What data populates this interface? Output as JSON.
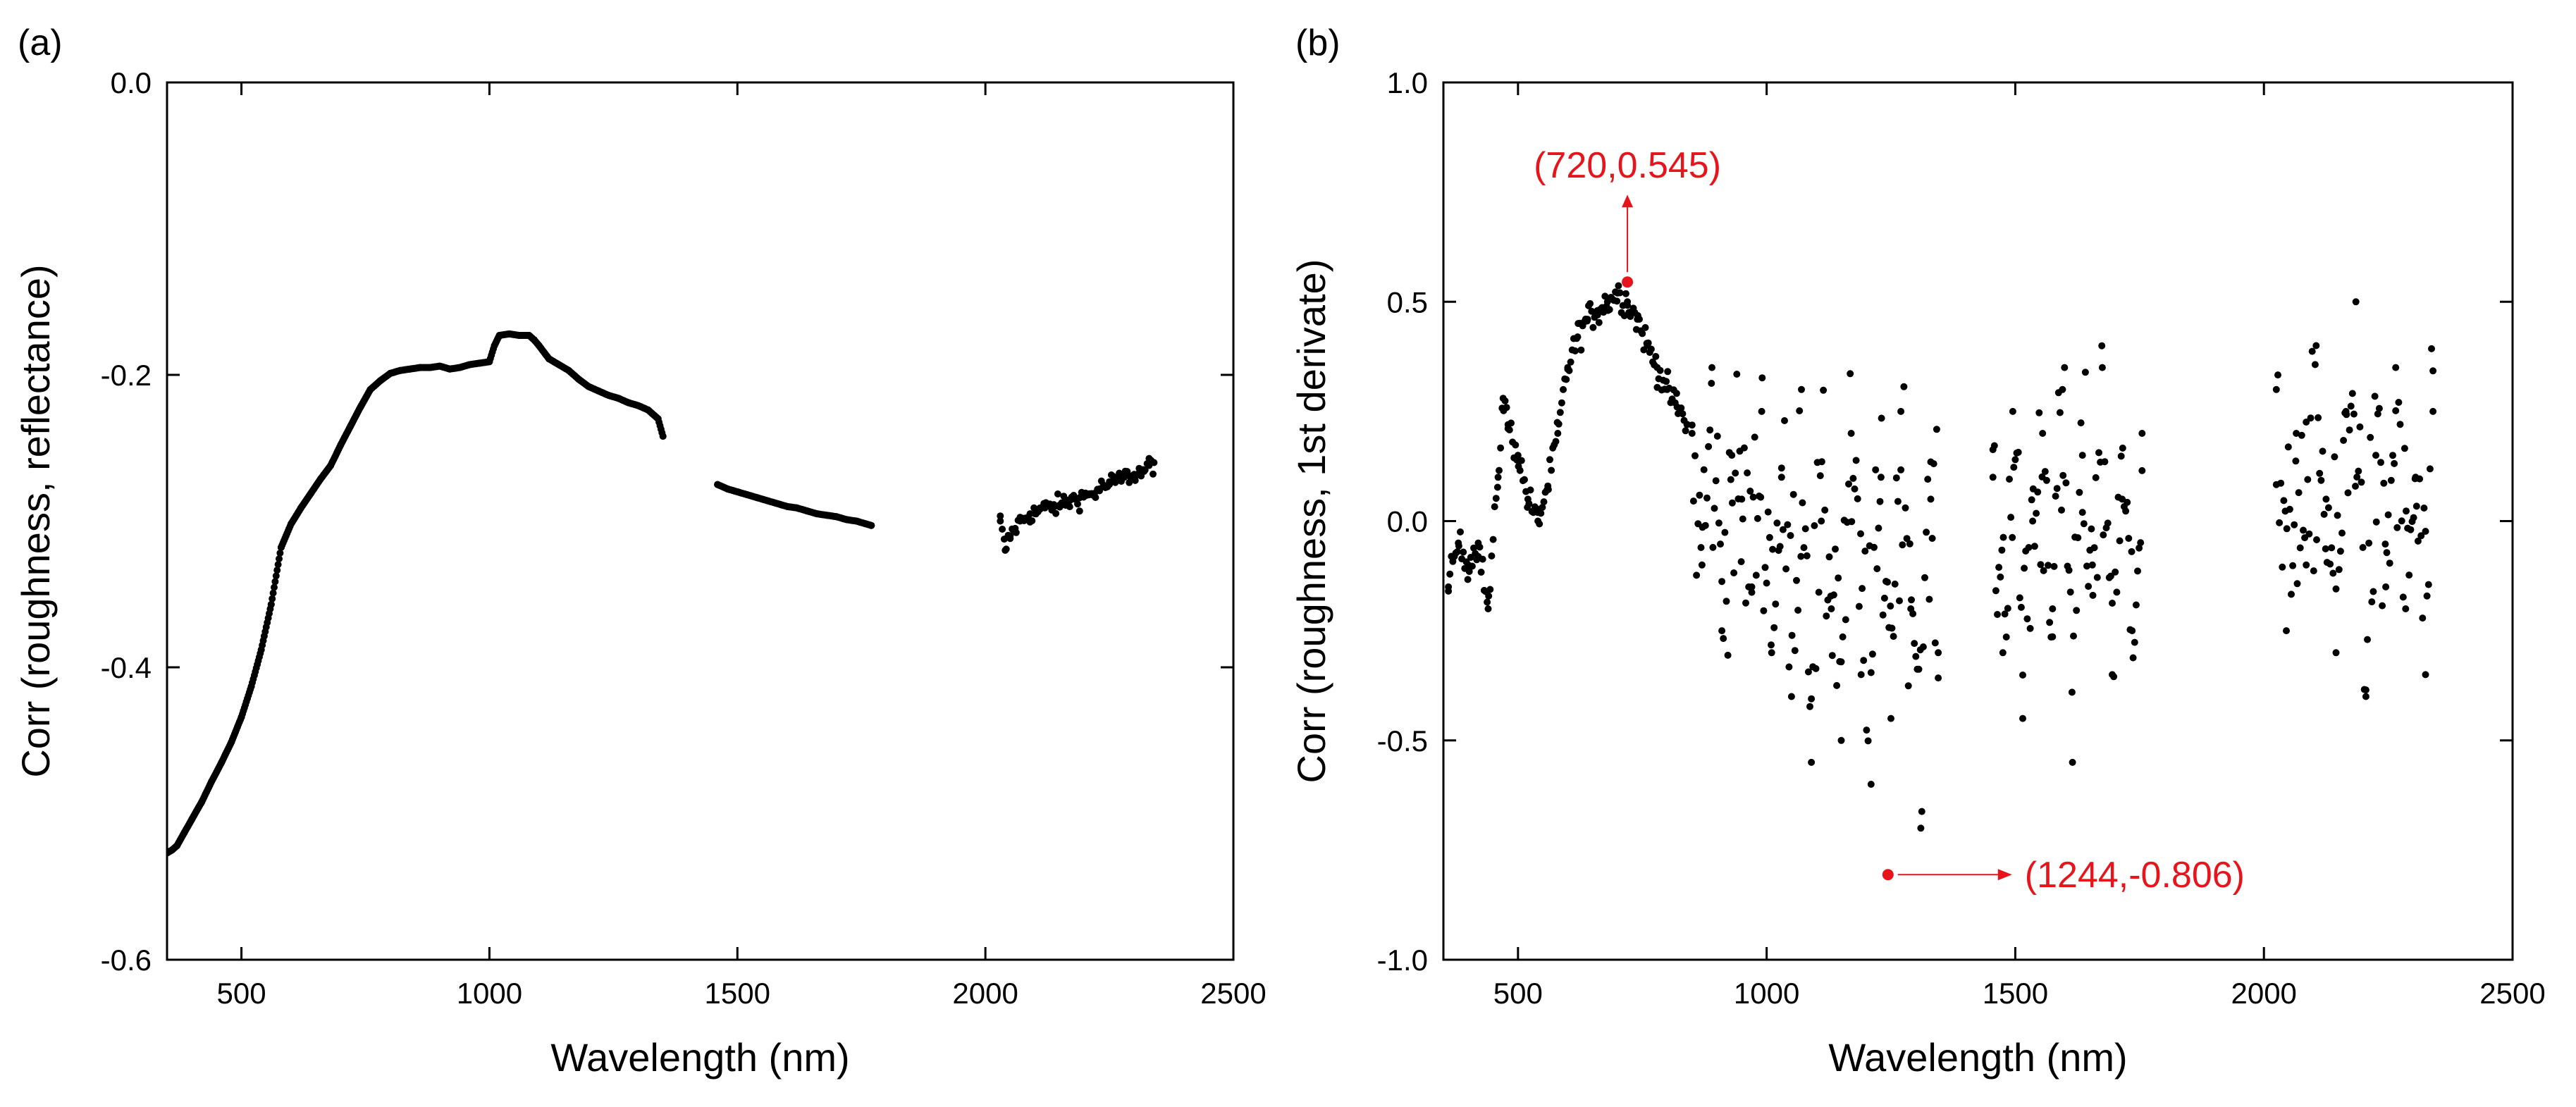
{
  "chart_data": [
    {
      "panel": "(a)",
      "type": "scatter",
      "title": "",
      "xlabel": "Wavelength (nm)",
      "ylabel": "Corr (roughness, reflectance)",
      "xlim": [
        350,
        2500
      ],
      "ylim": [
        -0.6,
        0.0
      ],
      "xticks": [
        500,
        1000,
        1500,
        2000,
        2500
      ],
      "xtick_labels": [
        "500",
        "1000",
        "1500",
        "2000",
        "2500"
      ],
      "yticks": [
        -0.6,
        -0.4,
        -0.2,
        0.0
      ],
      "ytick_labels": [
        "-0.6",
        "-0.4",
        "-0.2",
        "0.0"
      ],
      "grid": false,
      "series": [
        {
          "name": "segment-1",
          "x": [
            350,
            360,
            370,
            385,
            400,
            420,
            440,
            460,
            480,
            500,
            520,
            540,
            560,
            580,
            600,
            620,
            640,
            660,
            680,
            700,
            720,
            740,
            760,
            780,
            800,
            820,
            840,
            860,
            880,
            900,
            920,
            940,
            960,
            980,
            1000,
            1010,
            1020,
            1040,
            1060,
            1080,
            1090,
            1100,
            1120,
            1140,
            1160,
            1180,
            1200,
            1220,
            1240,
            1260,
            1280,
            1300,
            1320,
            1340,
            1350
          ],
          "values": [
            -0.527,
            -0.525,
            -0.522,
            -0.513,
            -0.504,
            -0.492,
            -0.478,
            -0.465,
            -0.451,
            -0.434,
            -0.413,
            -0.388,
            -0.357,
            -0.318,
            -0.302,
            -0.291,
            -0.281,
            -0.271,
            -0.262,
            -0.248,
            -0.235,
            -0.222,
            -0.21,
            -0.204,
            -0.199,
            -0.197,
            -0.196,
            -0.195,
            -0.195,
            -0.194,
            -0.196,
            -0.195,
            -0.193,
            -0.192,
            -0.191,
            -0.18,
            -0.173,
            -0.172,
            -0.173,
            -0.173,
            -0.176,
            -0.18,
            -0.189,
            -0.193,
            -0.197,
            -0.203,
            -0.208,
            -0.211,
            -0.214,
            -0.216,
            -0.219,
            -0.221,
            -0.224,
            -0.23,
            -0.242
          ]
        },
        {
          "name": "segment-2",
          "x": [
            1460,
            1480,
            1500,
            1520,
            1540,
            1560,
            1580,
            1600,
            1620,
            1640,
            1660,
            1680,
            1700,
            1720,
            1740,
            1760,
            1770
          ],
          "values": [
            -0.275,
            -0.278,
            -0.28,
            -0.282,
            -0.284,
            -0.286,
            -0.288,
            -0.29,
            -0.291,
            -0.293,
            -0.295,
            -0.296,
            -0.297,
            -0.299,
            -0.3,
            -0.302,
            -0.303
          ]
        },
        {
          "name": "segment-3",
          "x": [
            2030,
            2040,
            2050,
            2060,
            2070,
            2080,
            2090,
            2100,
            2110,
            2120,
            2130,
            2140,
            2150,
            2160,
            2170,
            2180,
            2190,
            2200,
            2210,
            2220,
            2230,
            2240,
            2250,
            2260,
            2270,
            2280,
            2290,
            2300,
            2310,
            2320,
            2330,
            2340
          ],
          "values": [
            -0.3,
            -0.32,
            -0.31,
            -0.305,
            -0.3,
            -0.298,
            -0.295,
            -0.295,
            -0.292,
            -0.291,
            -0.29,
            -0.29,
            -0.289,
            -0.287,
            -0.286,
            -0.285,
            -0.284,
            -0.283,
            -0.282,
            -0.281,
            -0.278,
            -0.276,
            -0.275,
            -0.273,
            -0.272,
            -0.27,
            -0.269,
            -0.268,
            -0.267,
            -0.266,
            -0.262,
            -0.26
          ]
        }
      ]
    },
    {
      "panel": "(b)",
      "type": "scatter",
      "title": "",
      "xlabel": "Wavelength (nm)",
      "ylabel": "Corr (roughness, 1st derivate)",
      "xlim": [
        350,
        2500
      ],
      "ylim": [
        -1.0,
        1.0
      ],
      "xticks": [
        500,
        1000,
        1500,
        2000,
        2500
      ],
      "xtick_labels": [
        "500",
        "1000",
        "1500",
        "2000",
        "2500"
      ],
      "yticks": [
        -1.0,
        -0.5,
        0.0,
        0.5,
        1.0
      ],
      "ytick_labels": [
        "-1.0",
        "-0.5",
        "0.0",
        "0.5",
        "1.0"
      ],
      "grid": false,
      "series": [
        {
          "name": "structured-part",
          "x": [
            360,
            380,
            400,
            420,
            440,
            460,
            470,
            480,
            500,
            520,
            540,
            560,
            580,
            600,
            620,
            640,
            660,
            680,
            700,
            720,
            740,
            760,
            780,
            800,
            820,
            840
          ],
          "values": [
            -0.15,
            -0.05,
            -0.1,
            -0.05,
            -0.2,
            0.1,
            0.28,
            0.22,
            0.15,
            0.05,
            0.0,
            0.08,
            0.2,
            0.35,
            0.42,
            0.46,
            0.48,
            0.5,
            0.52,
            0.5,
            0.46,
            0.4,
            0.35,
            0.3,
            0.26,
            0.22
          ]
        },
        {
          "name": "noisy-region-1",
          "x": [
            850,
            870,
            890,
            910,
            930,
            950,
            970,
            990,
            1010,
            1030,
            1050,
            1070,
            1090,
            1110,
            1130,
            1150,
            1170,
            1190,
            1210,
            1230,
            1250,
            1270,
            1290,
            1310,
            1330,
            1345
          ],
          "values": [
            0.2,
            -0.1,
            0.35,
            -0.25,
            0.15,
            0.05,
            -0.15,
            0.25,
            -0.3,
            0.1,
            -0.4,
            0.3,
            -0.55,
            0.0,
            -0.2,
            -0.5,
            0.2,
            -0.35,
            -0.6,
            0.1,
            -0.45,
            0.25,
            -0.2,
            -0.7,
            0.05,
            -0.3
          ]
        },
        {
          "name": "noisy-region-2",
          "x": [
            1455,
            1475,
            1495,
            1515,
            1535,
            1555,
            1575,
            1595,
            1615,
            1635,
            1655,
            1675,
            1695,
            1715,
            1735,
            1755
          ],
          "values": [
            0.1,
            -0.3,
            0.25,
            -0.45,
            0.0,
            0.2,
            -0.2,
            0.3,
            -0.55,
            0.15,
            -0.1,
            0.35,
            -0.35,
            0.05,
            -0.25,
            0.2
          ]
        },
        {
          "name": "noisy-region-3",
          "x": [
            2025,
            2045,
            2065,
            2085,
            2105,
            2125,
            2145,
            2165,
            2185,
            2205,
            2225,
            2245,
            2265,
            2285,
            2305,
            2325,
            2340
          ],
          "values": [
            0.3,
            -0.25,
            0.2,
            -0.1,
            0.4,
            0.05,
            -0.3,
            0.25,
            0.5,
            -0.4,
            0.15,
            -0.15,
            0.35,
            -0.2,
            0.1,
            -0.35,
            0.25
          ]
        }
      ],
      "annotations": [
        {
          "label": "(720,0.545)",
          "x": 720,
          "y": 0.545,
          "arrow": "up"
        },
        {
          "label": "(1244,-0.806)",
          "x": 1244,
          "y": -0.806,
          "arrow": "right"
        }
      ],
      "annotation_color": "#e8141b"
    }
  ],
  "panel_labels": [
    "(a)",
    "(b)"
  ]
}
